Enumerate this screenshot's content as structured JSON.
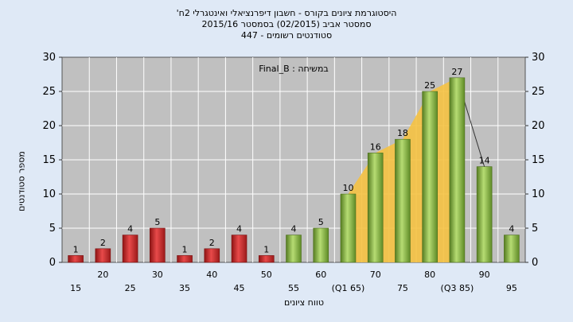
{
  "title_lines": [
    "היסטוגרמת ציונים בקורס - חשבון דיפרנציאלי ואינטגרלי 2ח'",
    "סמסטר אביב  (02/2015)  בסמסטר 2015/16",
    "סטודנטים רשומים - 447"
  ],
  "chart_data": {
    "type": "bar",
    "title": "היסטוגרמת ציונים בקורס - חשבון דיפרנציאלי ואינטגרלי 2ח'",
    "annotation": "במשיחה : Final_B",
    "xlabel": "טווח ציונים",
    "ylabel": "מספר סטודנטים",
    "ylim": [
      0,
      30
    ],
    "yticks": [
      0,
      5,
      10,
      15,
      20,
      25,
      30
    ],
    "grid": true,
    "right_axis": true,
    "categories": [
      "15",
      "20",
      "25",
      "30",
      "35",
      "40",
      "45",
      "50",
      "55",
      "60",
      "(Q1 65)",
      "70",
      "75",
      "80",
      "(Q3 85)",
      "90",
      "95"
    ],
    "values": [
      1,
      2,
      4,
      5,
      1,
      2,
      4,
      1,
      4,
      5,
      10,
      16,
      18,
      25,
      27,
      14,
      4
    ],
    "bar_colors": [
      "#d42b2b",
      "#d42b2b",
      "#d42b2b",
      "#d42b2b",
      "#d42b2b",
      "#d42b2b",
      "#d42b2b",
      "#d42b2b",
      "#7fb83a",
      "#7fb83a",
      "#7fb83a",
      "#7fb83a",
      "#7fb83a",
      "#7fb83a",
      "#7fb83a",
      "#7fb83a",
      "#7fb83a"
    ],
    "iqr_area_color": "#f5c242",
    "plot_background": "#c0c0c0"
  }
}
